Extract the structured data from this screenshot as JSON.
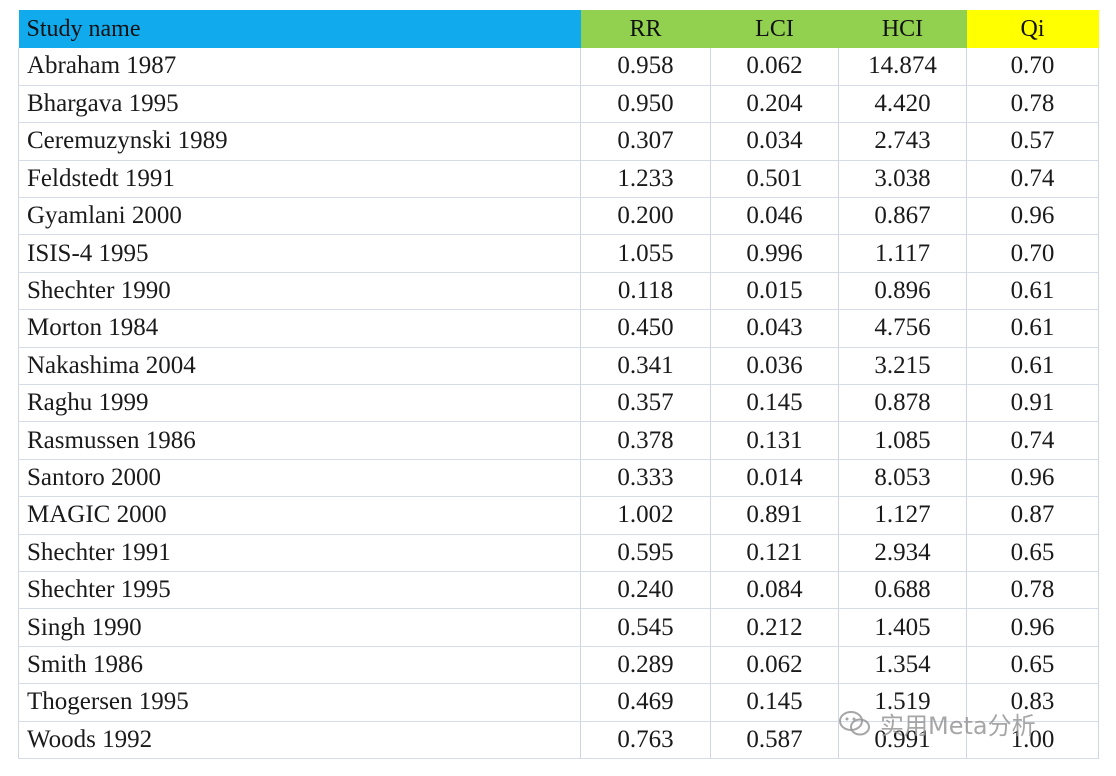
{
  "colors": {
    "header_name": "#10aaed",
    "header_rr": "#92d050",
    "header_lci": "#92d050",
    "header_hci": "#92d050",
    "header_qi": "#ffff00"
  },
  "table": {
    "headers": {
      "name": "Study name",
      "rr": "RR",
      "lci": "LCI",
      "hci": "HCI",
      "qi": "Qi"
    },
    "rows": [
      {
        "name": "Abraham 1987",
        "rr": "0.958",
        "lci": "0.062",
        "hci": "14.874",
        "qi": "0.70"
      },
      {
        "name": "Bhargava 1995",
        "rr": "0.950",
        "lci": "0.204",
        "hci": "4.420",
        "qi": "0.78"
      },
      {
        "name": "Ceremuzynski 1989",
        "rr": "0.307",
        "lci": "0.034",
        "hci": "2.743",
        "qi": "0.57"
      },
      {
        "name": "Feldstedt 1991",
        "rr": "1.233",
        "lci": "0.501",
        "hci": "3.038",
        "qi": "0.74"
      },
      {
        "name": "Gyamlani 2000",
        "rr": "0.200",
        "lci": "0.046",
        "hci": "0.867",
        "qi": "0.96"
      },
      {
        "name": "ISIS-4 1995",
        "rr": "1.055",
        "lci": "0.996",
        "hci": "1.117",
        "qi": "0.70"
      },
      {
        "name": "Shechter 1990",
        "rr": "0.118",
        "lci": "0.015",
        "hci": "0.896",
        "qi": "0.61"
      },
      {
        "name": "Morton 1984",
        "rr": "0.450",
        "lci": "0.043",
        "hci": "4.756",
        "qi": "0.61"
      },
      {
        "name": "Nakashima 2004",
        "rr": "0.341",
        "lci": "0.036",
        "hci": "3.215",
        "qi": "0.61"
      },
      {
        "name": "Raghu 1999",
        "rr": "0.357",
        "lci": "0.145",
        "hci": "0.878",
        "qi": "0.91"
      },
      {
        "name": "Rasmussen 1986",
        "rr": "0.378",
        "lci": "0.131",
        "hci": "1.085",
        "qi": "0.74"
      },
      {
        "name": "Santoro 2000",
        "rr": "0.333",
        "lci": "0.014",
        "hci": "8.053",
        "qi": "0.96"
      },
      {
        "name": "MAGIC 2000",
        "rr": "1.002",
        "lci": "0.891",
        "hci": "1.127",
        "qi": "0.87"
      },
      {
        "name": "Shechter 1991",
        "rr": "0.595",
        "lci": "0.121",
        "hci": "2.934",
        "qi": "0.65"
      },
      {
        "name": "Shechter 1995",
        "rr": "0.240",
        "lci": "0.084",
        "hci": "0.688",
        "qi": "0.78"
      },
      {
        "name": "Singh 1990",
        "rr": "0.545",
        "lci": "0.212",
        "hci": "1.405",
        "qi": "0.96"
      },
      {
        "name": "Smith 1986",
        "rr": "0.289",
        "lci": "0.062",
        "hci": "1.354",
        "qi": "0.65"
      },
      {
        "name": "Thogersen 1995",
        "rr": "0.469",
        "lci": "0.145",
        "hci": "1.519",
        "qi": "0.83"
      },
      {
        "name": "Woods 1992",
        "rr": "0.763",
        "lci": "0.587",
        "hci": "0.991",
        "qi": "1.00"
      }
    ]
  },
  "watermark": {
    "icon": "wechat-icon",
    "text": "实用Meta分析"
  }
}
